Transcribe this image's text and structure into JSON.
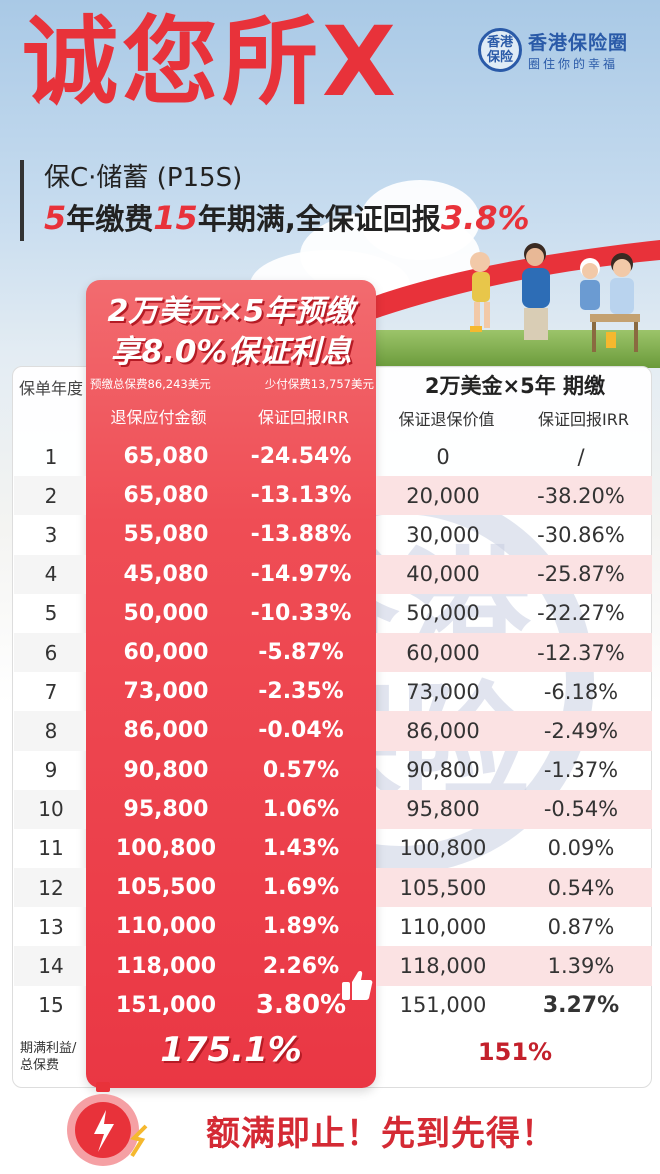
{
  "header": {
    "headline": "诚您所X",
    "product": "保C·储蓄 (P15S)",
    "tagline_parts": [
      "5",
      "年缴费",
      "15",
      "年期满,全保证回报",
      "3.8%"
    ]
  },
  "logo": {
    "badge": "香港保险",
    "name": "香港保险圈",
    "slogan": "圈住你的幸福"
  },
  "promo": {
    "line1": "2万美元×5年预缴",
    "line2": "享8.0%保证利息",
    "sub_left": "预缴总保费86,243美元",
    "sub_right": "少付保费13,757美元",
    "col_amount": "退保应付金额",
    "col_irr": "保证回报IRR"
  },
  "table": {
    "year_head": "保单年度",
    "right_title": "2万美金×5年 期缴",
    "right_col_value": "保证退保价值",
    "right_col_irr": "保证回报IRR",
    "rows": [
      {
        "year": "1",
        "amount": "65,080",
        "irr": "-24.54%",
        "value": "0",
        "rirr": "/"
      },
      {
        "year": "2",
        "amount": "65,080",
        "irr": "-13.13%",
        "value": "20,000",
        "rirr": "-38.20%"
      },
      {
        "year": "3",
        "amount": "55,080",
        "irr": "-13.88%",
        "value": "30,000",
        "rirr": "-30.86%"
      },
      {
        "year": "4",
        "amount": "45,080",
        "irr": "-14.97%",
        "value": "40,000",
        "rirr": "-25.87%"
      },
      {
        "year": "5",
        "amount": "50,000",
        "irr": "-10.33%",
        "value": "50,000",
        "rirr": "-22.27%"
      },
      {
        "year": "6",
        "amount": "60,000",
        "irr": "-5.87%",
        "value": "60,000",
        "rirr": "-12.37%"
      },
      {
        "year": "7",
        "amount": "73,000",
        "irr": "-2.35%",
        "value": "73,000",
        "rirr": "-6.18%"
      },
      {
        "year": "8",
        "amount": "86,000",
        "irr": "-0.04%",
        "value": "86,000",
        "rirr": "-2.49%"
      },
      {
        "year": "9",
        "amount": "90,800",
        "irr": "0.57%",
        "value": "90,800",
        "rirr": "-1.37%"
      },
      {
        "year": "10",
        "amount": "95,800",
        "irr": "1.06%",
        "value": "95,800",
        "rirr": "-0.54%"
      },
      {
        "year": "11",
        "amount": "100,800",
        "irr": "1.43%",
        "value": "100,800",
        "rirr": "0.09%"
      },
      {
        "year": "12",
        "amount": "105,500",
        "irr": "1.69%",
        "value": "105,500",
        "rirr": "0.54%"
      },
      {
        "year": "13",
        "amount": "110,000",
        "irr": "1.89%",
        "value": "110,000",
        "rirr": "0.87%"
      },
      {
        "year": "14",
        "amount": "118,000",
        "irr": "2.26%",
        "value": "118,000",
        "rirr": "1.39%"
      },
      {
        "year": "15",
        "amount": "151,000",
        "irr": "3.80%",
        "value": "151,000",
        "rirr": "3.27%"
      }
    ],
    "summary_label": "期满利益/总保费",
    "summary_left": "175.1%",
    "summary_right": "151%"
  },
  "watermark_text": "香港保险",
  "footer": {
    "text": "额满即止！先到先得！"
  },
  "colors": {
    "brand_red": "#e8323a",
    "logo_blue": "#2a5aa8"
  }
}
